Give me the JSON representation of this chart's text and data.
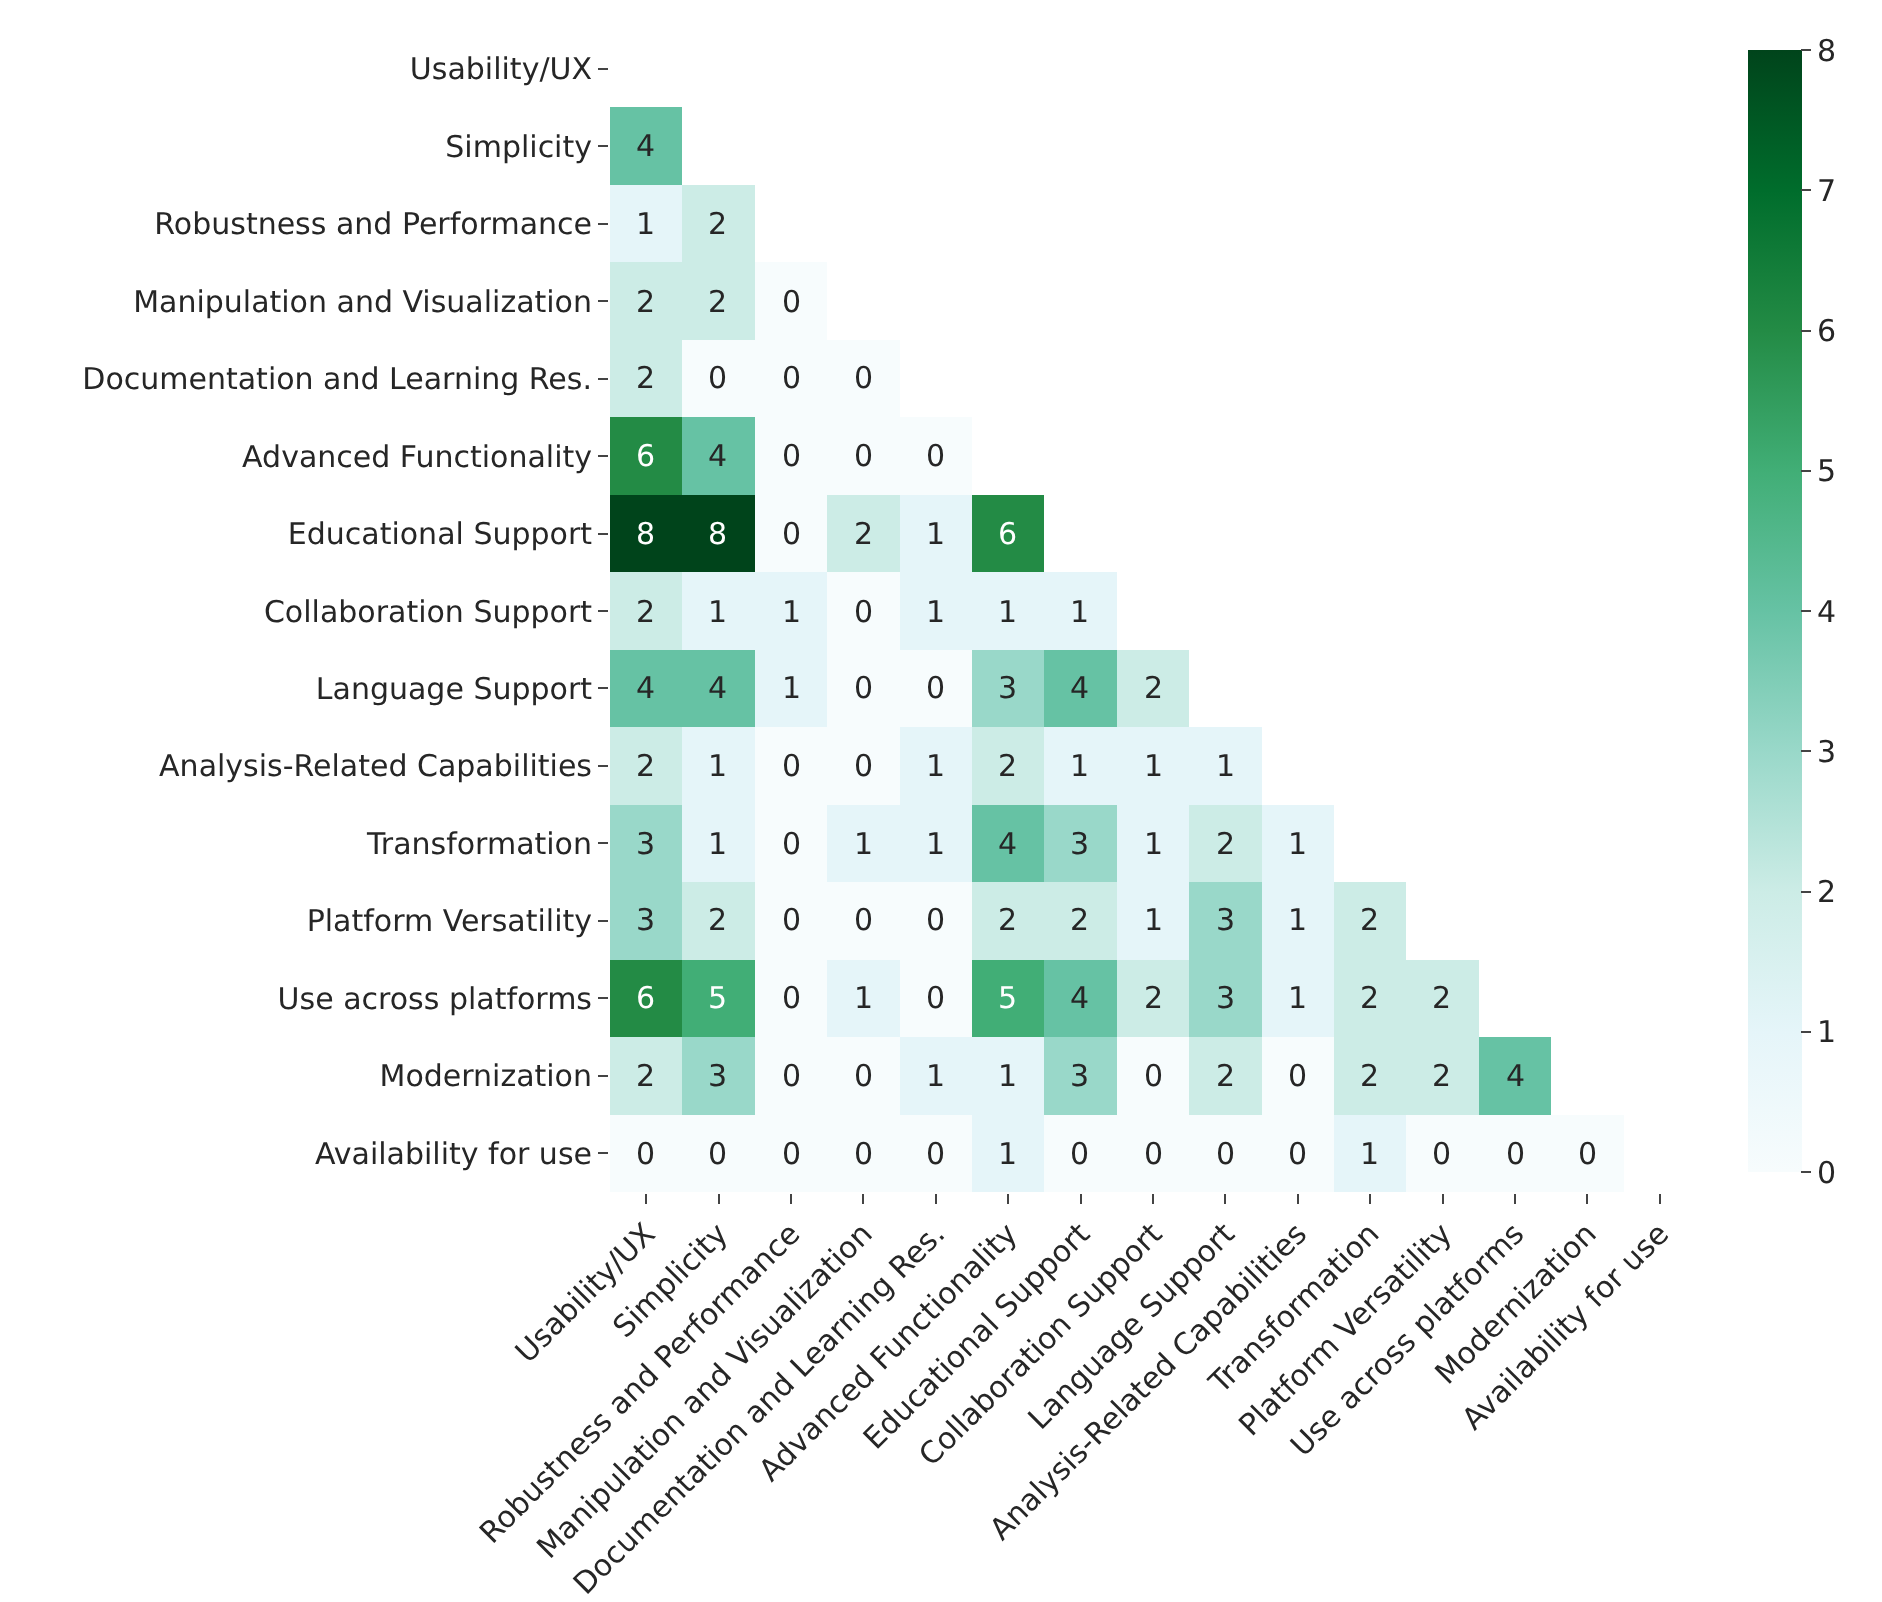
{
  "chart_data": {
    "type": "heatmap",
    "categories": [
      "Usability/UX",
      "Simplicity",
      "Robustness and Performance",
      "Manipulation and Visualization",
      "Documentation and Learning Res.",
      "Advanced Functionality",
      "Educational Support",
      "Collaboration Support",
      "Language Support",
      "Analysis-Related Capabilities",
      "Transformation",
      "Platform Versatility",
      "Use across platforms",
      "Modernization",
      "Availability for use"
    ],
    "y_categories": [
      "Usability/UX",
      "Simplicity",
      "Robustness and Performance",
      "Manipulation and Visualization",
      "Documentation and Learning Res.",
      "Advanced Functionality",
      "Educational Support",
      "Collaboration Support",
      "Language Support",
      "Analysis-Related Capabilities",
      "Transformation",
      "Platform Versatility",
      "Use across platforms",
      "Modernization",
      "Availability for use"
    ],
    "cells": [
      [
        null,
        null,
        null,
        null,
        null,
        null,
        null,
        null,
        null,
        null,
        null,
        null,
        null,
        null,
        null
      ],
      [
        4,
        null,
        null,
        null,
        null,
        null,
        null,
        null,
        null,
        null,
        null,
        null,
        null,
        null,
        null
      ],
      [
        1,
        2,
        null,
        null,
        null,
        null,
        null,
        null,
        null,
        null,
        null,
        null,
        null,
        null,
        null
      ],
      [
        2,
        2,
        0,
        null,
        null,
        null,
        null,
        null,
        null,
        null,
        null,
        null,
        null,
        null,
        null
      ],
      [
        2,
        0,
        0,
        0,
        null,
        null,
        null,
        null,
        null,
        null,
        null,
        null,
        null,
        null,
        null
      ],
      [
        6,
        4,
        0,
        0,
        0,
        null,
        null,
        null,
        null,
        null,
        null,
        null,
        null,
        null,
        null
      ],
      [
        8,
        8,
        0,
        2,
        1,
        6,
        null,
        null,
        null,
        null,
        null,
        null,
        null,
        null,
        null
      ],
      [
        2,
        1,
        1,
        0,
        1,
        1,
        1,
        null,
        null,
        null,
        null,
        null,
        null,
        null,
        null
      ],
      [
        4,
        4,
        1,
        0,
        0,
        3,
        4,
        2,
        null,
        null,
        null,
        null,
        null,
        null,
        null
      ],
      [
        2,
        1,
        0,
        0,
        1,
        2,
        1,
        1,
        1,
        null,
        null,
        null,
        null,
        null,
        null
      ],
      [
        3,
        1,
        0,
        1,
        1,
        4,
        3,
        1,
        2,
        1,
        null,
        null,
        null,
        null,
        null
      ],
      [
        3,
        2,
        0,
        0,
        0,
        2,
        2,
        1,
        3,
        1,
        2,
        null,
        null,
        null,
        null
      ],
      [
        6,
        5,
        0,
        1,
        0,
        5,
        4,
        2,
        3,
        1,
        2,
        2,
        null,
        null,
        null
      ],
      [
        2,
        3,
        0,
        0,
        1,
        1,
        3,
        0,
        2,
        0,
        2,
        2,
        4,
        null,
        null
      ],
      [
        0,
        0,
        0,
        0,
        0,
        1,
        0,
        0,
        0,
        0,
        1,
        0,
        0,
        0,
        null
      ]
    ],
    "clim": [
      0,
      8
    ],
    "cticks": [
      0,
      1,
      2,
      3,
      4,
      5,
      6,
      7,
      8
    ],
    "data_labels": true
  }
}
